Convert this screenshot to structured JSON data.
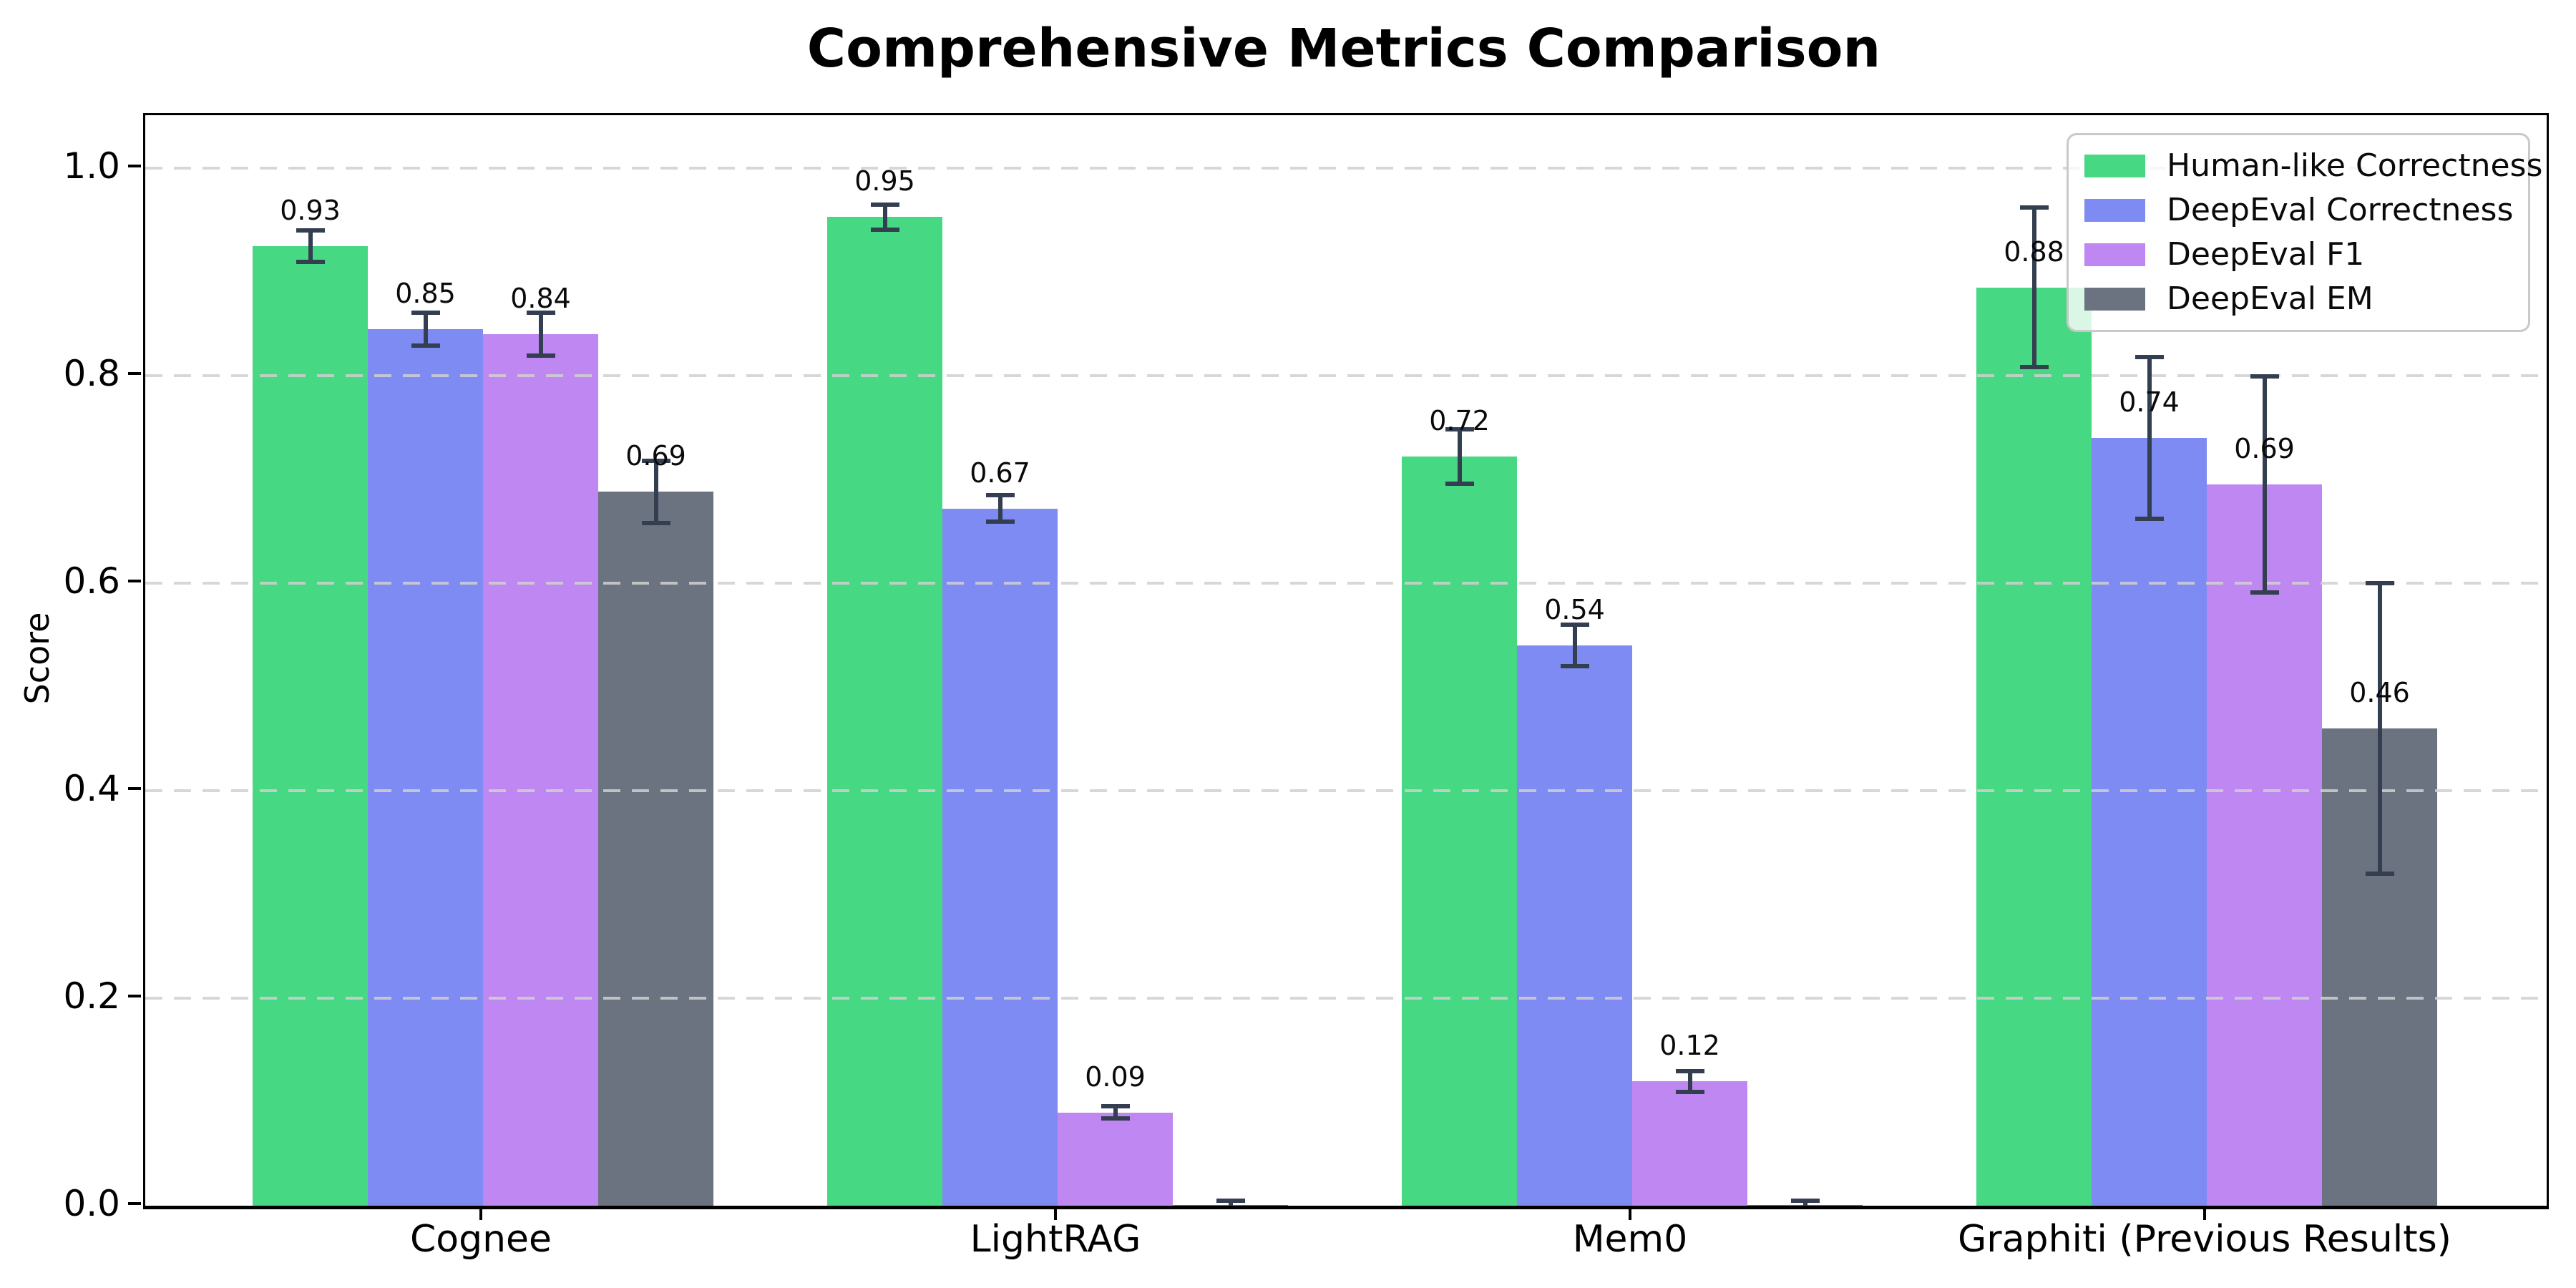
{
  "chart_data": {
    "type": "bar",
    "title": "Comprehensive Metrics Comparison",
    "ylabel": "Score",
    "xlabel": "",
    "categories": [
      "Cognee",
      "LightRAG",
      "Mem0",
      "Graphiti (Previous Results)"
    ],
    "series": [
      {
        "name": "Human-like Correctness",
        "color": "#47d884",
        "values": [
          0.925,
          0.953,
          0.722,
          0.885
        ],
        "errors": [
          0.015,
          0.012,
          0.026,
          0.077
        ],
        "labels": [
          "0.93",
          "0.95",
          "0.72",
          "0.88"
        ]
      },
      {
        "name": "DeepEval Correctness",
        "color": "#7e8bf2",
        "values": [
          0.845,
          0.672,
          0.54,
          0.74
        ],
        "errors": [
          0.016,
          0.013,
          0.02,
          0.078
        ],
        "labels": [
          "0.85",
          "0.67",
          "0.54",
          "0.74"
        ]
      },
      {
        "name": "DeepEval F1",
        "color": "#bf87f2",
        "values": [
          0.84,
          0.09,
          0.12,
          0.695
        ],
        "errors": [
          0.021,
          0.006,
          0.01,
          0.104
        ],
        "labels": [
          "0.84",
          "0.09",
          "0.12",
          "0.69"
        ]
      },
      {
        "name": "DeepEval EM",
        "color": "#6b7280",
        "values": [
          0.688,
          0.001,
          0.001,
          0.46
        ],
        "errors": [
          0.03,
          0.004,
          0.004,
          0.14
        ],
        "labels": [
          "0.69",
          "",
          "",
          "0.46"
        ]
      }
    ],
    "ylim": [
      0,
      1.05
    ],
    "yticks": [
      "0.0",
      "0.2",
      "0.4",
      "0.6",
      "0.8",
      "1.0"
    ],
    "grid": "dashed-horizontal-over-bars",
    "legend_position": "upper-right",
    "error_bar_color": "#333e50",
    "background_color": "#ffffff"
  }
}
